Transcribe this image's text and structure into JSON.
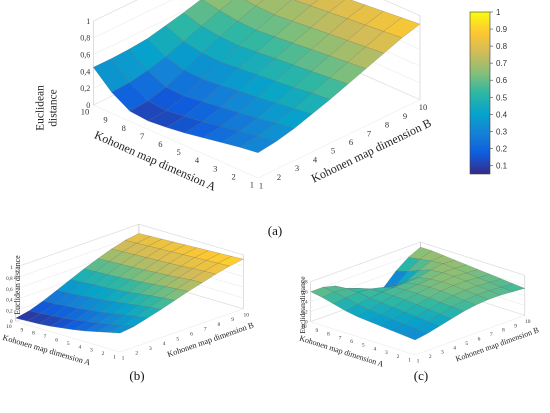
{
  "chart_data": [
    {
      "type": "surface",
      "panel_label": "(a)",
      "xlabel": "Kohonen map dimension B",
      "ylabel": "Kohonen map dimension A",
      "zlabel": "Euclidean distance",
      "x_ticks": [
        "1",
        "2",
        "3",
        "4",
        "5",
        "6",
        "7",
        "8",
        "9",
        "10"
      ],
      "y_ticks": [
        "1",
        "2",
        "3",
        "4",
        "5",
        "6",
        "7",
        "8",
        "9",
        "10"
      ],
      "z_ticks": [
        "0",
        "0,2",
        "0,4",
        "0,6",
        "0,8",
        "1"
      ],
      "z_range": [
        0,
        1
      ],
      "grid": "x-y-z 10x10 mesh",
      "z_values": [
        [
          0.3,
          0.33,
          0.38,
          0.45,
          0.52,
          0.6,
          0.68,
          0.76,
          0.84,
          0.9
        ],
        [
          0.27,
          0.3,
          0.35,
          0.42,
          0.5,
          0.58,
          0.66,
          0.74,
          0.82,
          0.88
        ],
        [
          0.23,
          0.26,
          0.31,
          0.39,
          0.47,
          0.56,
          0.64,
          0.72,
          0.8,
          0.86
        ],
        [
          0.19,
          0.22,
          0.28,
          0.36,
          0.45,
          0.54,
          0.62,
          0.7,
          0.78,
          0.84
        ],
        [
          0.15,
          0.18,
          0.25,
          0.34,
          0.43,
          0.52,
          0.6,
          0.68,
          0.76,
          0.82
        ],
        [
          0.12,
          0.15,
          0.22,
          0.31,
          0.41,
          0.5,
          0.58,
          0.66,
          0.74,
          0.8
        ],
        [
          0.1,
          0.12,
          0.19,
          0.29,
          0.39,
          0.48,
          0.56,
          0.64,
          0.72,
          0.78
        ],
        [
          0.12,
          0.14,
          0.2,
          0.3,
          0.4,
          0.49,
          0.57,
          0.65,
          0.72,
          0.77
        ],
        [
          0.25,
          0.26,
          0.3,
          0.36,
          0.44,
          0.52,
          0.6,
          0.67,
          0.73,
          0.77
        ],
        [
          0.45,
          0.45,
          0.46,
          0.48,
          0.53,
          0.58,
          0.64,
          0.69,
          0.73,
          0.76
        ]
      ]
    },
    {
      "type": "surface",
      "panel_label": "(b)",
      "xlabel": "Kohonen map dimension B",
      "ylabel": "Kohonen map dimension A",
      "zlabel": "Euclidean distance",
      "x_ticks": [
        "1",
        "2",
        "3",
        "4",
        "5",
        "6",
        "7",
        "8",
        "9",
        "10"
      ],
      "y_ticks": [
        "1",
        "2",
        "3",
        "4",
        "5",
        "6",
        "7",
        "8",
        "9",
        "10"
      ],
      "z_ticks": [
        "0",
        "0,2",
        "0,4",
        "0,6",
        "0,8",
        "1"
      ],
      "z_range": [
        0,
        1
      ],
      "grid": "x-y-z 10x10 mesh",
      "z_values": [
        [
          0.35,
          0.38,
          0.45,
          0.52,
          0.6,
          0.68,
          0.75,
          0.82,
          0.88,
          0.92
        ],
        [
          0.3,
          0.34,
          0.42,
          0.5,
          0.58,
          0.66,
          0.74,
          0.81,
          0.87,
          0.91
        ],
        [
          0.25,
          0.3,
          0.38,
          0.47,
          0.56,
          0.64,
          0.72,
          0.8,
          0.86,
          0.9
        ],
        [
          0.2,
          0.26,
          0.34,
          0.44,
          0.53,
          0.62,
          0.7,
          0.78,
          0.85,
          0.89
        ],
        [
          0.16,
          0.22,
          0.31,
          0.41,
          0.5,
          0.6,
          0.69,
          0.77,
          0.84,
          0.88
        ],
        [
          0.13,
          0.19,
          0.28,
          0.38,
          0.48,
          0.58,
          0.67,
          0.76,
          0.83,
          0.87
        ],
        [
          0.1,
          0.16,
          0.25,
          0.36,
          0.46,
          0.56,
          0.66,
          0.75,
          0.82,
          0.86
        ],
        [
          0.08,
          0.14,
          0.23,
          0.34,
          0.45,
          0.55,
          0.65,
          0.74,
          0.81,
          0.85
        ],
        [
          0.07,
          0.12,
          0.21,
          0.32,
          0.43,
          0.54,
          0.64,
          0.73,
          0.8,
          0.84
        ],
        [
          0.06,
          0.11,
          0.2,
          0.31,
          0.42,
          0.53,
          0.63,
          0.72,
          0.79,
          0.83
        ]
      ]
    },
    {
      "type": "surface",
      "panel_label": "(c)",
      "xlabel": "Kohonen map dimension B",
      "ylabel": "Kohonen map dimension A",
      "zlabel": "Euclidean distance",
      "x_ticks": [
        "1",
        "2",
        "3",
        "4",
        "5",
        "6",
        "7",
        "8",
        "9",
        "10"
      ],
      "y_ticks": [
        "1",
        "2",
        "3",
        "4",
        "5",
        "6",
        "7",
        "8",
        "9",
        "10"
      ],
      "z_ticks": [
        "0",
        "0,2",
        "0,4",
        "0,6",
        "0,8"
      ],
      "z_range": [
        0,
        0.8
      ],
      "grid": "x-y-z 10x10 mesh",
      "z_values": [
        [
          0.3,
          0.34,
          0.4,
          0.46,
          0.52,
          0.56,
          0.58,
          0.58,
          0.56,
          0.54
        ],
        [
          0.32,
          0.36,
          0.42,
          0.48,
          0.54,
          0.58,
          0.6,
          0.6,
          0.58,
          0.56
        ],
        [
          0.34,
          0.38,
          0.44,
          0.5,
          0.55,
          0.6,
          0.62,
          0.62,
          0.6,
          0.58
        ],
        [
          0.36,
          0.4,
          0.46,
          0.52,
          0.57,
          0.62,
          0.64,
          0.64,
          0.62,
          0.6
        ],
        [
          0.38,
          0.42,
          0.48,
          0.54,
          0.58,
          0.62,
          0.64,
          0.66,
          0.64,
          0.62
        ],
        [
          0.4,
          0.44,
          0.5,
          0.55,
          0.58,
          0.6,
          0.62,
          0.66,
          0.66,
          0.64
        ],
        [
          0.44,
          0.48,
          0.52,
          0.55,
          0.56,
          0.56,
          0.58,
          0.64,
          0.68,
          0.66
        ],
        [
          0.5,
          0.54,
          0.56,
          0.54,
          0.48,
          0.42,
          0.44,
          0.56,
          0.66,
          0.68
        ],
        [
          0.56,
          0.58,
          0.56,
          0.48,
          0.3,
          0.18,
          0.26,
          0.46,
          0.62,
          0.7
        ],
        [
          0.6,
          0.6,
          0.54,
          0.4,
          0.14,
          0.06,
          0.16,
          0.4,
          0.58,
          0.7
        ]
      ]
    }
  ],
  "colorbar": {
    "ticks": [
      "1",
      "0.9",
      "0.8",
      "0.7",
      "0.6",
      "0.5",
      "0.4",
      "0.3",
      "0.2",
      "0.1"
    ],
    "range": [
      0.05,
      1
    ],
    "colormap": "parula",
    "stops": [
      "#352a87",
      "#0f5cdd",
      "#1481d6",
      "#06a4ca",
      "#2eb7a4",
      "#87bf77",
      "#d1bb59",
      "#fec832",
      "#f9fb0e"
    ]
  }
}
